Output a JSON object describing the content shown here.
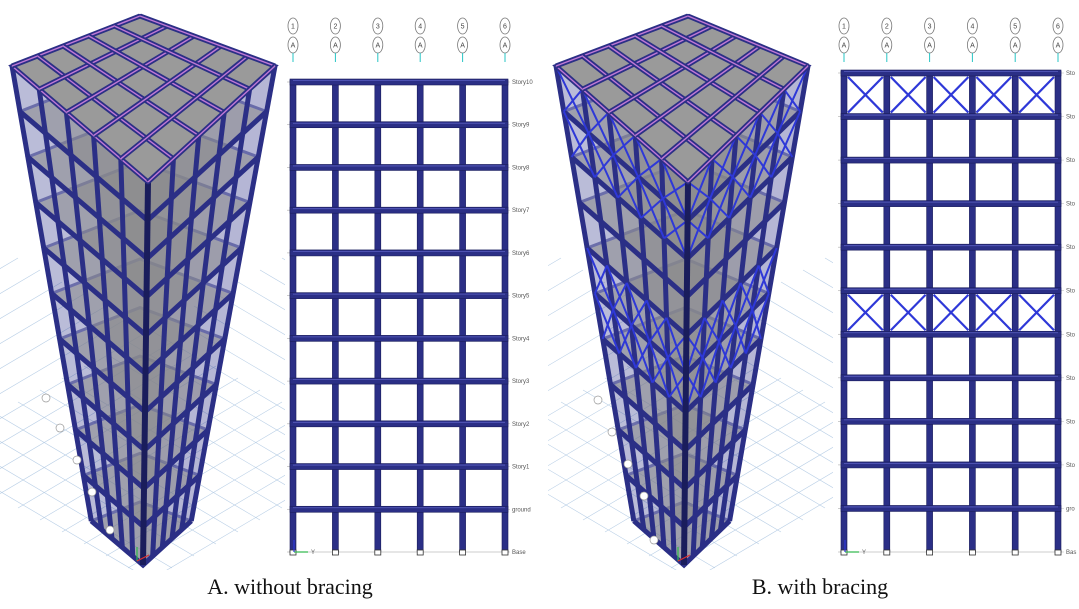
{
  "figure": {
    "captions": {
      "a": "A. without bracing",
      "b": "B. with bracing"
    },
    "colors": {
      "frame": "#2b2f86",
      "frame_edge": "#1a1d5c",
      "slab": "#8a8a8a",
      "beam_top": "#c078d6",
      "brace": "#2e38d8",
      "grid_ground": "#b9cfe6",
      "grid_axis": "#27c4c4"
    },
    "axis_bubbles": [
      {
        "num": "1",
        "letter": "A"
      },
      {
        "num": "2",
        "letter": "A"
      },
      {
        "num": "3",
        "letter": "A"
      },
      {
        "num": "4",
        "letter": "A"
      },
      {
        "num": "5",
        "letter": "A"
      },
      {
        "num": "6",
        "letter": "A"
      }
    ],
    "story_labels_a": [
      "Story10",
      "Story9",
      "Story8",
      "Story7",
      "Story6",
      "Story5",
      "Story4",
      "Story3",
      "Story2",
      "Story1",
      "ground",
      "Base"
    ],
    "story_labels_b": [
      "Sto",
      "Sto",
      "Sto",
      "Sto",
      "Sto",
      "Sto",
      "Sto",
      "Sto",
      "Sto",
      "Sto",
      "gro",
      "Bas"
    ],
    "braced_stories_b": [
      1,
      6
    ],
    "axis_triad_label": "Y"
  }
}
